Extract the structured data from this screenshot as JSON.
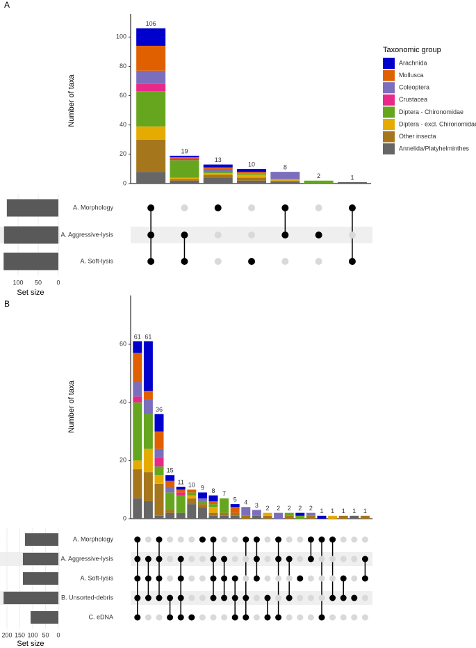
{
  "chart_data": [
    {
      "type": "upset",
      "panel_label": "A",
      "ylabel": "Number of taxa",
      "ylim": [
        0,
        112
      ],
      "yticks": [
        0,
        20,
        40,
        60,
        80,
        100
      ],
      "legend_title": "Taxonomic group",
      "series": [
        {
          "name": "Arachnida",
          "color": "#0000cc",
          "values": [
            12,
            1,
            2,
            2,
            0,
            0,
            0
          ]
        },
        {
          "name": "Mollusca",
          "color": "#e06000",
          "values": [
            17,
            1,
            1,
            1,
            0,
            0,
            0
          ]
        },
        {
          "name": "Coleoptera",
          "color": "#7b6fbd",
          "values": [
            9,
            0,
            2,
            0,
            5,
            0,
            0
          ]
        },
        {
          "name": "Crustacea",
          "color": "#e7298a",
          "values": [
            5,
            1,
            0,
            0,
            0,
            0,
            0
          ]
        },
        {
          "name": "Diptera - Chironomidae",
          "color": "#66a61e",
          "values": [
            24,
            12,
            1,
            1,
            0,
            2,
            0
          ]
        },
        {
          "name": "Diptera - excl. Chironomidae",
          "color": "#e6ab02",
          "values": [
            9,
            1,
            1,
            2,
            1,
            0,
            0
          ]
        },
        {
          "name": "Other insecta",
          "color": "#a6761d",
          "values": [
            22,
            1,
            2,
            2,
            1,
            0,
            0
          ]
        },
        {
          "name": "Annelida/Platyhelminthes",
          "color": "#666666",
          "values": [
            8,
            2,
            4,
            2,
            1,
            0,
            1
          ]
        }
      ],
      "totals": [
        106,
        19,
        13,
        10,
        8,
        2,
        1
      ],
      "sets": [
        "A. Morphology",
        "A. Aggressive-lysis",
        "A. Soft-lysis"
      ],
      "set_sizes": [
        128,
        135,
        136
      ],
      "set_xlim": [
        0,
        145
      ],
      "set_xticks": [
        0,
        50,
        100
      ],
      "set_xlabel": "Set size",
      "matrix": [
        [
          1,
          1,
          1
        ],
        [
          0,
          1,
          1
        ],
        [
          1,
          0,
          0
        ],
        [
          0,
          0,
          1
        ],
        [
          1,
          1,
          0
        ],
        [
          0,
          1,
          0
        ],
        [
          1,
          0,
          1
        ]
      ]
    },
    {
      "type": "upset",
      "panel_label": "B",
      "ylabel": "Number of taxa",
      "ylim": [
        0,
        77
      ],
      "yticks": [
        0,
        20,
        40,
        60
      ],
      "series": [
        {
          "values": [
            4,
            17,
            6,
            2,
            1,
            0,
            2,
            2,
            0,
            1,
            0,
            0,
            0,
            0,
            0,
            1,
            0,
            1,
            0,
            0,
            0,
            0
          ]
        },
        {
          "values": [
            10,
            3,
            6,
            2,
            1,
            1,
            0,
            1,
            0,
            2,
            0,
            0,
            0,
            0,
            0,
            0,
            0,
            0,
            0,
            0,
            0,
            0
          ]
        },
        {
          "values": [
            5,
            5,
            3,
            2,
            0,
            0,
            1,
            0,
            0,
            0,
            3,
            2,
            0,
            2,
            0,
            0,
            1,
            0,
            0,
            0,
            0,
            0
          ]
        },
        {
          "values": [
            2,
            0,
            3,
            0,
            1,
            0,
            0,
            0,
            0,
            0,
            0,
            0,
            0,
            0,
            0,
            0,
            0,
            0,
            0,
            0,
            0,
            0
          ]
        },
        {
          "values": [
            20,
            12,
            3,
            6,
            6,
            1,
            1,
            1,
            5,
            0,
            0,
            0,
            0,
            0,
            1,
            1,
            0,
            0,
            0,
            0,
            0,
            0
          ]
        },
        {
          "values": [
            3,
            8,
            3,
            0,
            0,
            1,
            0,
            2,
            0,
            0,
            0,
            0,
            1,
            0,
            0,
            0,
            0,
            0,
            1,
            0,
            0,
            0
          ]
        },
        {
          "values": [
            10,
            10,
            11,
            1,
            0,
            2,
            1,
            1,
            1,
            1,
            1,
            0,
            1,
            0,
            1,
            0,
            1,
            0,
            0,
            1,
            0,
            1
          ]
        },
        {
          "values": [
            7,
            6,
            1,
            2,
            2,
            5,
            4,
            1,
            1,
            1,
            0,
            1,
            0,
            0,
            0,
            0,
            0,
            0,
            0,
            0,
            1,
            0
          ]
        }
      ],
      "totals": [
        61,
        61,
        36,
        15,
        11,
        10,
        9,
        8,
        7,
        5,
        4,
        3,
        2,
        2,
        2,
        2,
        2,
        1,
        1,
        1,
        1,
        1
      ],
      "sets": [
        "A. Morphology",
        "A. Aggressive-lysis",
        "A. Soft-lysis",
        "B. Unsorted-debris",
        "C. eDNA"
      ],
      "set_sizes": [
        130,
        138,
        138,
        213,
        108
      ],
      "set_xlim": [
        0,
        227
      ],
      "set_xticks": [
        0,
        50,
        100,
        150,
        200
      ],
      "set_xlabel": "Set size",
      "matrix": [
        [
          1,
          1,
          1,
          1,
          1
        ],
        [
          0,
          1,
          1,
          1,
          0
        ],
        [
          1,
          1,
          1,
          1,
          0
        ],
        [
          0,
          0,
          0,
          1,
          1
        ],
        [
          0,
          1,
          1,
          1,
          1
        ],
        [
          0,
          0,
          0,
          0,
          1
        ],
        [
          1,
          0,
          0,
          0,
          0
        ],
        [
          1,
          1,
          1,
          1,
          0
        ],
        [
          0,
          1,
          1,
          1,
          0
        ],
        [
          0,
          0,
          1,
          1,
          1
        ],
        [
          1,
          0,
          0,
          1,
          1
        ],
        [
          1,
          1,
          1,
          0,
          0
        ],
        [
          0,
          0,
          0,
          1,
          1
        ],
        [
          1,
          1,
          0,
          0,
          1
        ],
        [
          0,
          1,
          0,
          1,
          0
        ],
        [
          0,
          0,
          1,
          0,
          0
        ],
        [
          1,
          1,
          0,
          0,
          0
        ],
        [
          1,
          0,
          0,
          0,
          1
        ],
        [
          1,
          0,
          0,
          1,
          0
        ],
        [
          0,
          0,
          1,
          1,
          0
        ],
        [
          0,
          0,
          0,
          1,
          0
        ],
        [
          0,
          1,
          1,
          0,
          0
        ]
      ]
    }
  ]
}
